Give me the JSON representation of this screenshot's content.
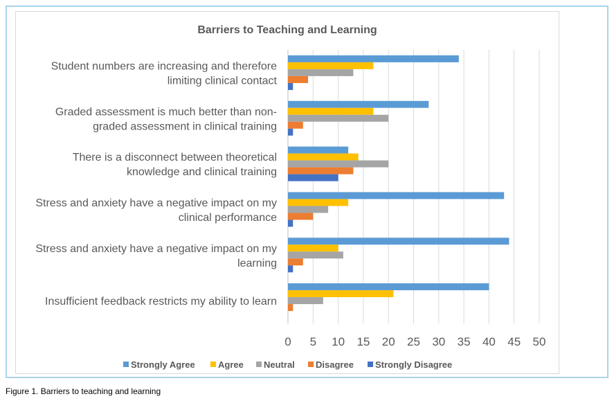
{
  "caption": "Figure 1. Barriers to teaching and learning",
  "chart_data": {
    "type": "bar",
    "orientation": "horizontal",
    "title": "Barriers to Teaching and Learning",
    "categories": [
      [
        "Student numbers are increasing and therefore",
        "limiting clinical contact"
      ],
      [
        "Graded assessment is much better than non-",
        "graded assessment in clinical training"
      ],
      [
        "There is a disconnect between theoretical",
        "knowledge and clinical training"
      ],
      [
        "Stress and anxiety have a negative impact on my",
        "clinical performance"
      ],
      [
        "Stress and anxiety have a negative impact on my",
        "learning"
      ],
      [
        "Insufficient feedback restricts my ability to learn"
      ]
    ],
    "series": [
      {
        "name": "Strongly Agree",
        "color": "#5b9bd5",
        "values": [
          34,
          28,
          12,
          43,
          44,
          40
        ]
      },
      {
        "name": "Agree",
        "color": "#ffc000",
        "values": [
          17,
          17,
          14,
          12,
          10,
          21
        ]
      },
      {
        "name": "Neutral",
        "color": "#a5a5a5",
        "values": [
          13,
          20,
          20,
          8,
          11,
          7
        ]
      },
      {
        "name": "Disagree",
        "color": "#ed7d31",
        "values": [
          4,
          3,
          13,
          5,
          3,
          1
        ]
      },
      {
        "name": "Strongly Disagree",
        "color": "#4472c4",
        "values": [
          1,
          1,
          10,
          1,
          1,
          0
        ]
      }
    ],
    "xlim": [
      0,
      50
    ],
    "xticks": [
      0,
      5,
      10,
      15,
      20,
      25,
      30,
      35,
      40,
      45,
      50
    ],
    "grid": true,
    "legend_position": "bottom"
  }
}
